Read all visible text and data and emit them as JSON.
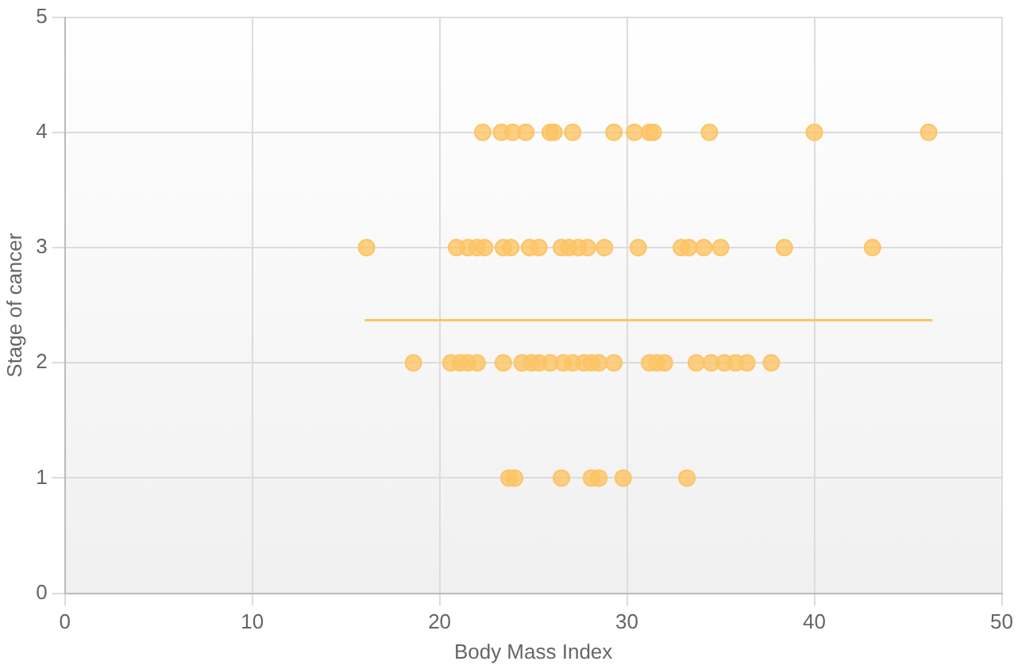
{
  "chart_data": {
    "type": "scatter",
    "xlabel": "Body Mass Index",
    "ylabel": "Stage of cancer",
    "xlim": [
      0,
      50
    ],
    "xticks": [
      0,
      10,
      20,
      30,
      40,
      50
    ],
    "ylim": [
      0,
      5
    ],
    "yticks": [
      0,
      1,
      2,
      3,
      4,
      5
    ],
    "grid": true,
    "legend": false,
    "series": [
      {
        "marker": "circle",
        "color": "#fdc465",
        "x": [
          22.3,
          23.3,
          23.9,
          24.6,
          25.9,
          26.1,
          27.1,
          29.3,
          30.4,
          31.2,
          31.4,
          34.4,
          40.0,
          46.1,
          16.1,
          20.9,
          21.5,
          22.0,
          22.4,
          23.4,
          23.8,
          24.8,
          25.3,
          26.5,
          26.9,
          27.4,
          27.9,
          28.8,
          30.6,
          32.9,
          33.3,
          34.1,
          35.0,
          38.4,
          43.1,
          18.6,
          20.6,
          21.1,
          21.5,
          22.0,
          23.4,
          24.4,
          24.9,
          25.3,
          25.9,
          26.6,
          27.1,
          27.7,
          28.1,
          28.5,
          29.3,
          31.2,
          31.6,
          32.0,
          33.7,
          34.5,
          35.2,
          35.8,
          36.4,
          37.7,
          23.7,
          24.0,
          26.5,
          28.1,
          28.5,
          29.8,
          33.2
        ],
        "values": [
          4,
          4,
          4,
          4,
          4,
          4,
          4,
          4,
          4,
          4,
          4,
          4,
          4,
          4,
          3,
          3,
          3,
          3,
          3,
          3,
          3,
          3,
          3,
          3,
          3,
          3,
          3,
          3,
          3,
          3,
          3,
          3,
          3,
          3,
          3,
          2,
          2,
          2,
          2,
          2,
          2,
          2,
          2,
          2,
          2,
          2,
          2,
          2,
          2,
          2,
          2,
          2,
          2,
          2,
          2,
          2,
          2,
          2,
          2,
          2,
          1,
          1,
          1,
          1,
          1,
          1,
          1
        ]
      },
      {
        "type": "line",
        "marker": "none",
        "color": "#f7c66a",
        "x": [
          16.0,
          46.3
        ],
        "values": [
          2.37,
          2.37
        ]
      }
    ]
  }
}
